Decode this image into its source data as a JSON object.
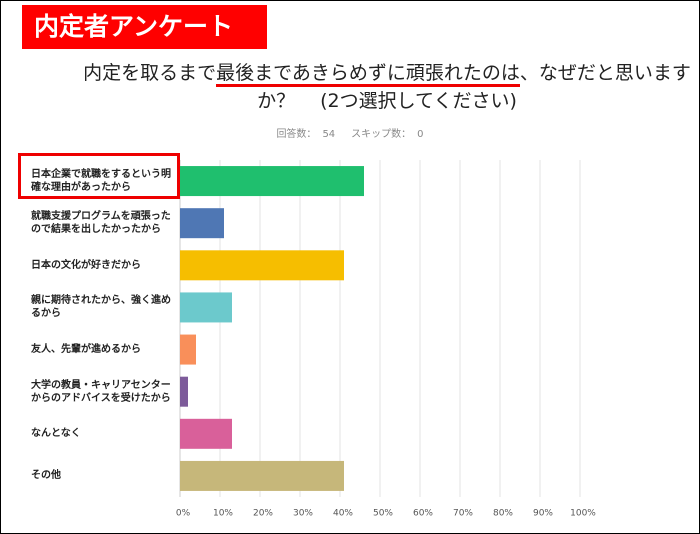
{
  "header": {
    "title": "内定者アンケート"
  },
  "question": {
    "parts": [
      "内定を取るまで",
      "最後まであきらめずに頑張れたのは",
      "、なぜだと思いますか？　 (2つ選択してください)"
    ]
  },
  "summary": {
    "answered_label": "回答数：",
    "answered": 54,
    "skipped_label": "スキップ数：",
    "skipped": 0
  },
  "chart_data": {
    "type": "barh",
    "categories": [
      "日本企業で就職をするという明確な理由があったから",
      "就職支援プログラムを頑張ったので結果を出したかったから",
      "日本の文化が好きだから",
      "親に期待されたから、強く進めるから",
      "友人、先輩が進めるから",
      "大学の教員・キャリアセンターからのアドバイスを受けたから",
      "なんとなく",
      "その他"
    ],
    "values": [
      46,
      11,
      41,
      13,
      4,
      2,
      13,
      41
    ],
    "colors": [
      "#1fbf6e",
      "#4f77b4",
      "#f6be00",
      "#6cc9cc",
      "#f98f5a",
      "#7d5b9a",
      "#d9609a",
      "#c6b77a"
    ],
    "xlim": [
      0,
      100
    ],
    "xticks": [
      {
        "value": 0,
        "label": "0%"
      },
      {
        "value": 10,
        "label": "10%"
      },
      {
        "value": 20,
        "label": "20%"
      },
      {
        "value": 30,
        "label": "30%"
      },
      {
        "value": 40,
        "label": "40%"
      },
      {
        "value": 50,
        "label": "50%"
      },
      {
        "value": 60,
        "label": "60%"
      },
      {
        "value": 70,
        "label": "70%"
      },
      {
        "value": 80,
        "label": "80%"
      },
      {
        "value": 90,
        "label": "90%"
      },
      {
        "value": 100,
        "label": "100%"
      }
    ],
    "grid": true
  }
}
